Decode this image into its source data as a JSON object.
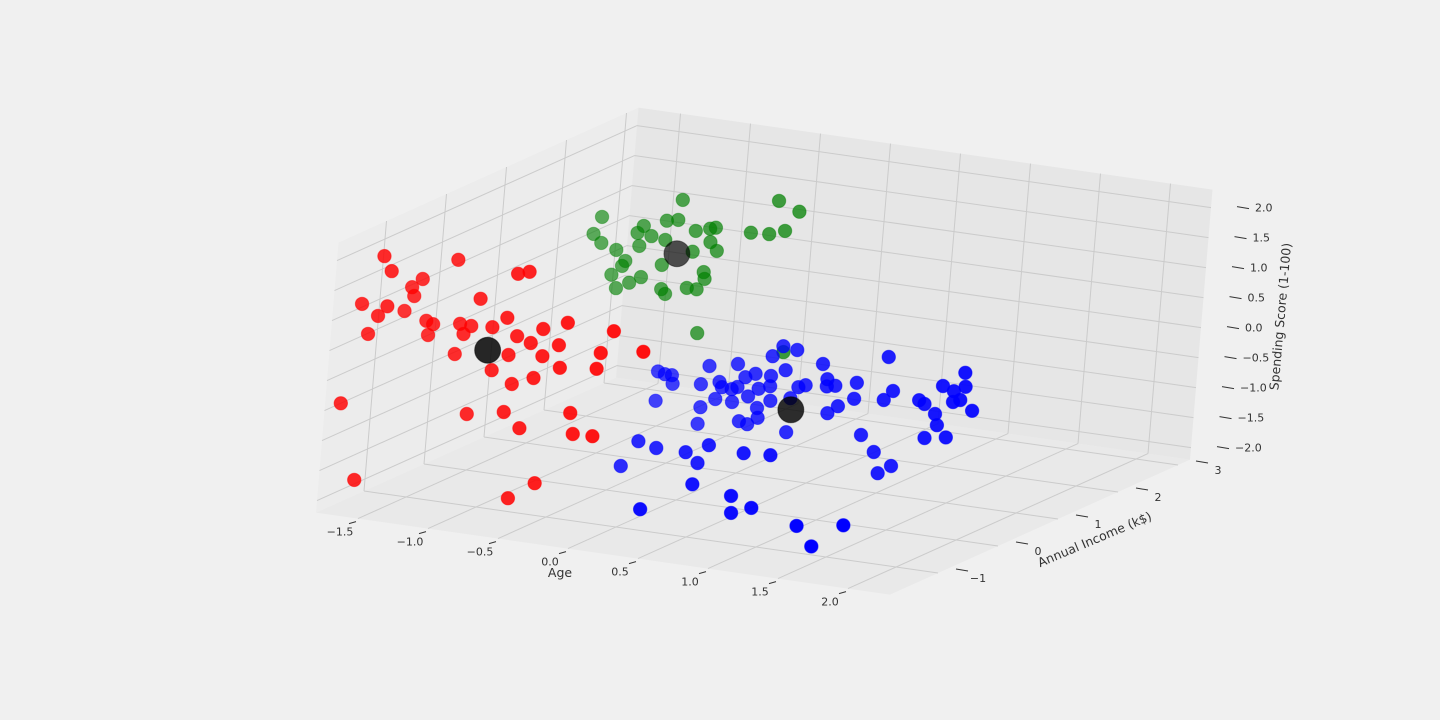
{
  "chart_data": {
    "type": "scatter3d",
    "xlabel": "Age",
    "ylabel": "Annual Income (k$)",
    "zlabel": "Spending Score (1-100)",
    "xlim": [
      -1.8,
      2.3
    ],
    "ylim": [
      -1.8,
      3.2
    ],
    "zlim": [
      -2.2,
      2.3
    ],
    "xticks": [
      {
        "value": -1.5,
        "label": "−1.5"
      },
      {
        "value": -1.0,
        "label": "−1.0"
      },
      {
        "value": -0.5,
        "label": "−0.5"
      },
      {
        "value": 0.0,
        "label": "0.0"
      },
      0.5,
      {
        "value": 1.0,
        "label": "1.0"
      },
      1.5,
      {
        "value": 2.0,
        "label": "2.0"
      }
    ],
    "yticks": [
      {
        "value": -1,
        "label": "−1"
      },
      0,
      1,
      2,
      3
    ],
    "zticks": [
      {
        "value": -2.0,
        "label": "−2.0"
      },
      {
        "value": -1.5,
        "label": "−1.5"
      },
      {
        "value": -1.0,
        "label": "−1.0"
      },
      {
        "value": -0.5,
        "label": "−0.5"
      },
      {
        "value": 0.0,
        "label": "0.0"
      },
      0.5,
      {
        "value": 1.0,
        "label": "1.0"
      },
      1.5,
      {
        "value": 2.0,
        "label": "2.0"
      }
    ],
    "grid": true,
    "depthshade": true,
    "series": [
      {
        "color": "#ff0000",
        "size": 80,
        "x": [
          -1.59,
          -1.53,
          -1.72,
          -1.54,
          -1.66,
          -1.6,
          -1.73,
          -1.59,
          -1.51,
          -1.58,
          -1.56,
          -1.62,
          -1.46,
          -1.41,
          -1.44,
          -1.27,
          -1.09,
          -0.84,
          -0.76,
          -0.89,
          -1.22,
          -1.14,
          -0.99,
          -1.19,
          -0.81,
          -0.63,
          -0.46,
          -0.71,
          -0.51,
          -0.86,
          -0.62,
          -1.24,
          -0.97,
          -0.82,
          -0.67,
          -0.49,
          -0.23,
          -0.21,
          -0.13,
          0.09,
          -1.12,
          -0.86,
          -0.74,
          -0.39,
          -0.36,
          -0.22,
          -0.78,
          -0.6
        ],
        "y": [
          -1.5,
          -1.5,
          -1.5,
          -1.5,
          -1.5,
          -1.5,
          -1.7,
          -1.7,
          -1.0,
          -1.0,
          -1.0,
          -1.0,
          -1.0,
          -1.0,
          -1.0,
          -1.0,
          -1.0,
          -1.0,
          -1.0,
          -1.0,
          -1.0,
          -1.0,
          -1.0,
          -1.0,
          -1.0,
          -1.0,
          -1.0,
          -1.0,
          -1.0,
          -1.0,
          -1.0,
          -1.0,
          -1.0,
          -1.0,
          -1.0,
          -1.0,
          -1.0,
          -1.0,
          -1.0,
          -1.0,
          -1.0,
          -1.0,
          -1.0,
          -1.0,
          -1.0,
          -1.0,
          -1.0,
          -1.0
        ],
        "z": [
          2.01,
          1.78,
          1.17,
          1.19,
          0.69,
          1.01,
          -0.4,
          -1.63,
          1.43,
          1.27,
          1.13,
          0.86,
          0.75,
          0.71,
          0.52,
          1.83,
          1.24,
          1.74,
          1.8,
          0.99,
          0.78,
          0.77,
          0.8,
          0.62,
          0.71,
          0.89,
          1.05,
          0.63,
          0.66,
          0.38,
          0.44,
          0.27,
          0.09,
          -0.09,
          0.06,
          0.29,
          0.36,
          0.63,
          1.02,
          0.75,
          -0.69,
          -0.57,
          -0.8,
          -0.43,
          -0.77,
          -0.76,
          -1.98,
          -1.67
        ]
      },
      {
        "color": "#008000",
        "size": 80,
        "x": [
          -1.3,
          -1.35,
          -1.29,
          -1.0,
          -1.04,
          -0.94,
          -0.84,
          -0.76,
          -0.74,
          -0.84,
          -0.63,
          -0.53,
          -0.49,
          -0.52,
          -0.47,
          -0.64,
          -1.18,
          -1.02,
          -1.11,
          -1.13,
          -1.2,
          -1.07,
          -0.99,
          -1.16,
          -0.85,
          -0.84,
          -0.81,
          -0.66,
          -0.59,
          -0.55,
          -0.54,
          -0.56,
          -0.24,
          -0.11,
          0.0,
          -0.06,
          0.09,
          0.06
        ],
        "y": [
          1.5,
          1.5,
          1.5,
          1.5,
          1.5,
          1.5,
          1.5,
          1.5,
          1.5,
          1.5,
          1.5,
          1.5,
          1.5,
          1.5,
          1.5,
          1.5,
          1.5,
          1.5,
          1.5,
          1.5,
          1.5,
          1.5,
          1.5,
          1.5,
          1.5,
          1.5,
          1.5,
          1.5,
          1.5,
          1.5,
          1.5,
          1.5,
          1.5,
          1.5,
          1.5,
          1.5,
          1.5,
          1.5
        ],
        "z": [
          1.41,
          1.11,
          0.98,
          1.36,
          1.23,
          1.21,
          1.5,
          1.54,
          1.88,
          1.18,
          1.4,
          1.47,
          1.5,
          1.25,
          1.12,
          1.05,
          0.9,
          1.02,
          0.74,
          0.65,
          0.48,
          0.39,
          0.51,
          0.27,
          0.76,
          0.36,
          0.29,
          0.44,
          0.44,
          0.74,
          0.63,
          -0.28,
          1.5,
          1.52,
          1.61,
          2.09,
          1.96,
          -0.39
        ]
      },
      {
        "color": "#0000ff",
        "size": 80,
        "x": [
          -0.61,
          -0.56,
          -0.51,
          -0.61,
          -0.5,
          -0.25,
          -0.05,
          -0.3,
          -0.17,
          -0.15,
          -0.19,
          -0.08,
          -0.04,
          0.01,
          0.08,
          -0.07,
          0.04,
          0.11,
          0.19,
          0.19,
          0.29,
          0.2,
          0.26,
          0.36,
          0.19,
          0.11,
          -0.01,
          0.05,
          0.12,
          -0.29,
          -0.3,
          0.34,
          0.39,
          0.44,
          0.55,
          0.59,
          0.65,
          0.59,
          0.68,
          0.61,
          0.8,
          0.79,
          1.0,
          1.01,
          1.06,
          1.25,
          1.29,
          1.41,
          1.49,
          1.56,
          1.57,
          1.54,
          1.49,
          1.63,
          1.37,
          1.39,
          1.31,
          1.46,
          0.86,
          0.96,
          1.09,
          1.0,
          0.33,
          1.4,
          1.07,
          0.74,
          0.6,
          0.59,
          0.31,
          1.39,
          0.16,
          0.13,
          0.2,
          0.45,
          0.64,
          0.04,
          -0.17,
          -0.3,
          -0.41
        ],
        "y": [
          1.0,
          1.0,
          1.0,
          1.0,
          1.0,
          1.0,
          1.0,
          1.0,
          1.0,
          1.0,
          1.0,
          1.0,
          1.0,
          1.0,
          1.0,
          1.0,
          1.0,
          1.0,
          1.0,
          1.0,
          1.0,
          1.0,
          1.0,
          1.0,
          1.0,
          1.0,
          1.0,
          1.0,
          1.0,
          1.0,
          1.0,
          1.0,
          1.0,
          1.0,
          1.0,
          1.0,
          1.0,
          1.0,
          1.0,
          1.0,
          1.0,
          1.0,
          1.0,
          1.0,
          1.0,
          1.0,
          1.0,
          1.0,
          1.0,
          1.0,
          1.0,
          1.0,
          1.0,
          1.0,
          1.0,
          1.0,
          1.0,
          1.0,
          1.0,
          1.0,
          1.0,
          1.0,
          1.0,
          -0.5,
          -0.5,
          -0.5,
          -0.5,
          -0.5,
          -0.5,
          -1.0,
          -1.0,
          0.0,
          0.0,
          0.0,
          0.0,
          0.0,
          0.0,
          0.0,
          0.0
        ],
        "z": [
          -0.71,
          -0.74,
          -0.74,
          -1.2,
          -0.88,
          -0.5,
          -0.4,
          -0.82,
          -0.74,
          -0.82,
          -1.03,
          -0.83,
          -0.78,
          -0.6,
          -0.52,
          -1.04,
          -0.91,
          -0.76,
          -0.69,
          -0.52,
          -0.39,
          -0.93,
          0.0,
          -0.03,
          -0.19,
          -1.08,
          -1.34,
          -1.37,
          -1.24,
          -1.2,
          -1.48,
          -0.84,
          -0.64,
          -0.59,
          -0.2,
          -0.44,
          -0.53,
          -0.56,
          -0.86,
          -1.0,
          -0.43,
          -0.7,
          -0.65,
          0.07,
          -0.48,
          -0.57,
          -0.62,
          -0.28,
          -0.34,
          -0.01,
          -0.24,
          -0.47,
          -0.52,
          -0.62,
          -0.76,
          -0.94,
          -1.18,
          -1.12,
          -1.28,
          -1.53,
          -1.72,
          -1.87,
          -1.41,
          -1.93,
          -2.05,
          -1.86,
          -1.99,
          -1.71,
          -1.61,
          -2.06,
          -1.85,
          -1.54,
          -1.22,
          -1.27,
          -1.24,
          -1.39,
          -1.39,
          -1.32,
          -1.77
        ]
      },
      {
        "color": "#000000",
        "size": 300,
        "x": [
          -1.01,
          -0.75,
          0.35
        ],
        "y": [
          -1.0,
          1.5,
          1.0
        ],
        "z": [
          0.41,
          0.98,
          -1.03
        ]
      }
    ]
  }
}
